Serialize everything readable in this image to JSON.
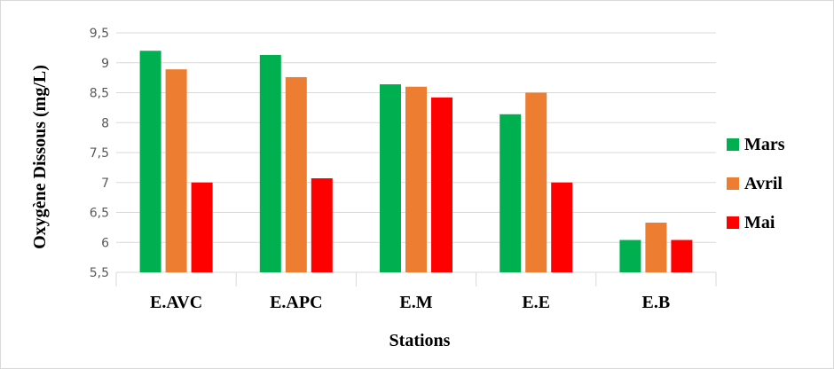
{
  "chart_data": {
    "type": "bar",
    "categories": [
      "E.AVC",
      "E.APC",
      "E.M",
      "E.E",
      "E.B"
    ],
    "series": [
      {
        "name": "Mars",
        "color": "#00b050",
        "values": [
          9.2,
          9.13,
          8.64,
          8.14,
          6.04
        ]
      },
      {
        "name": "Avril",
        "color": "#ed7d31",
        "values": [
          8.89,
          8.76,
          8.6,
          8.5,
          6.33
        ]
      },
      {
        "name": "Mai",
        "color": "#ff0000",
        "values": [
          7.0,
          7.07,
          8.42,
          7.0,
          6.04
        ]
      }
    ],
    "xlabel": "Stations",
    "ylabel": "Oxygène Dissous (mg/L)",
    "ylim": [
      5.5,
      9.5
    ],
    "yticks": [
      "5,5",
      "6",
      "6,5",
      "7",
      "7,5",
      "8",
      "8,5",
      "9",
      "9,5"
    ],
    "grid": true,
    "legend_position": "right"
  }
}
